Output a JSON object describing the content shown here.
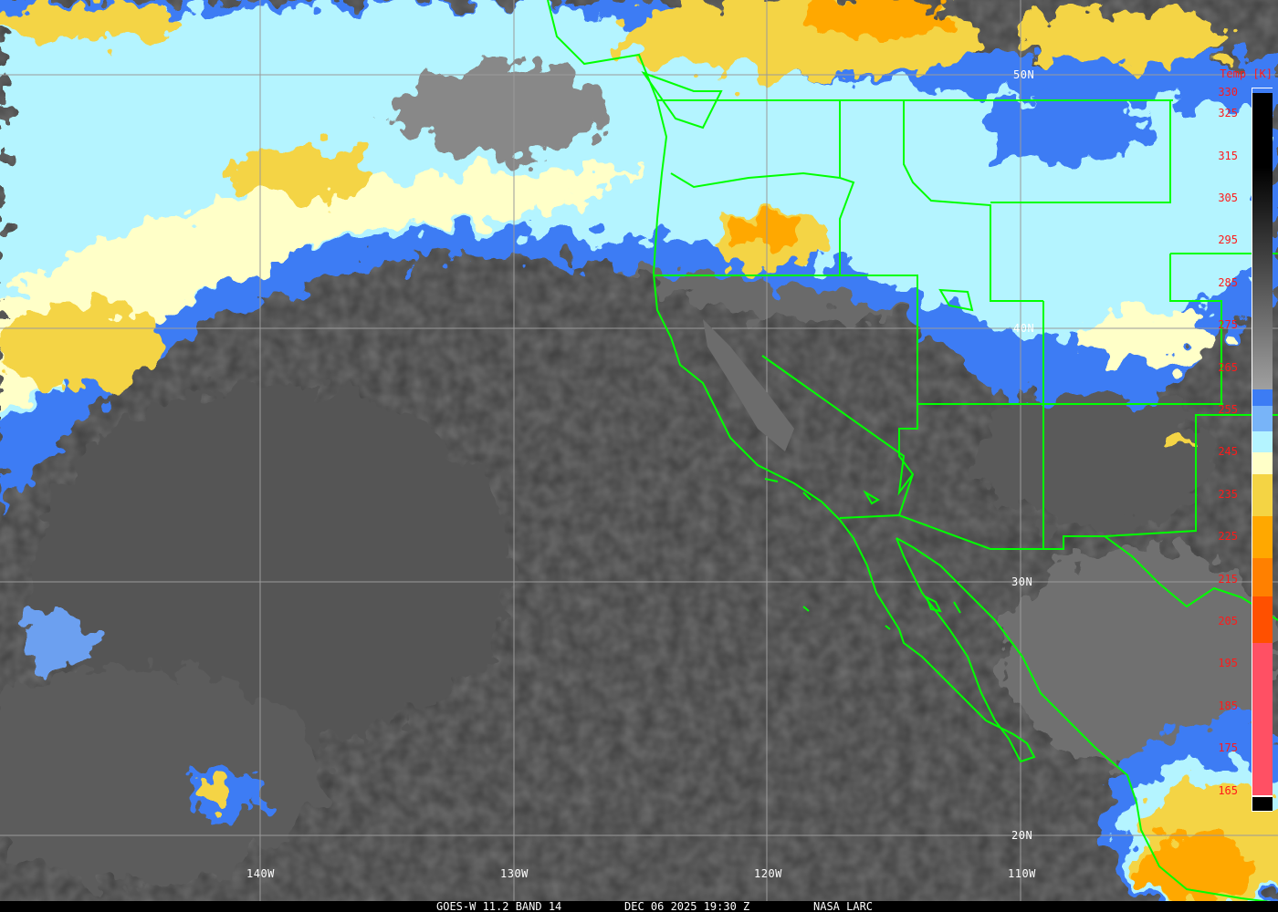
{
  "map": {
    "satellite": "GOES-W",
    "caption": {
      "product": "GOES-W 11.2 BAND 14",
      "datetime": "DEC 06 2025 19:30 Z",
      "source": "NASA LARC"
    },
    "latitude_labels": [
      "50N",
      "40N",
      "30N",
      "20N"
    ],
    "longitude_labels": [
      "140W",
      "130W",
      "120W",
      "110W"
    ],
    "border_color": "#00ff00",
    "grid_color": "#9a9a9a"
  },
  "colorbar": {
    "title": "Temp [K]",
    "ticks": [
      "330",
      "325",
      "315",
      "305",
      "295",
      "285",
      "275",
      "265",
      "255",
      "245",
      "235",
      "225",
      "215",
      "205",
      "195",
      "185",
      "175",
      "165"
    ],
    "tick_values": [
      330,
      325,
      315,
      305,
      295,
      285,
      275,
      265,
      255,
      245,
      235,
      225,
      215,
      205,
      195,
      185,
      175,
      165
    ],
    "segments": [
      {
        "from": 330,
        "to": 260,
        "color": "gradient-black-to-gray"
      },
      {
        "from": 260,
        "to": 256,
        "color": "#3c7cf4"
      },
      {
        "from": 256,
        "to": 250,
        "color": "#78b4f8"
      },
      {
        "from": 250,
        "to": 245,
        "color": "#b4f4ff"
      },
      {
        "from": 245,
        "to": 240,
        "color": "#ffffc8"
      },
      {
        "from": 240,
        "to": 230,
        "color": "#f4d444"
      },
      {
        "from": 230,
        "to": 220,
        "color": "#ffa800"
      },
      {
        "from": 220,
        "to": 211,
        "color": "#ff8000"
      },
      {
        "from": 211,
        "to": 200,
        "color": "#ff5000"
      },
      {
        "from": 200,
        "to": 164,
        "color": "#ff5064"
      }
    ]
  }
}
